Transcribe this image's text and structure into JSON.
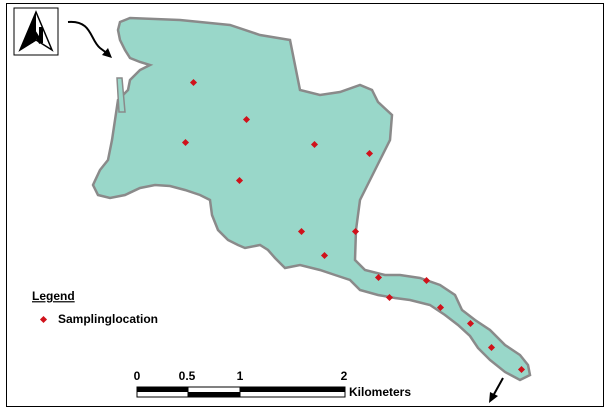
{
  "legend": {
    "title": "Legend",
    "items": [
      "Samplinglocation"
    ]
  },
  "scale_bar": {
    "labels": [
      "0",
      "0.5",
      "1",
      "2"
    ],
    "unit": "Kilometers"
  }
}
